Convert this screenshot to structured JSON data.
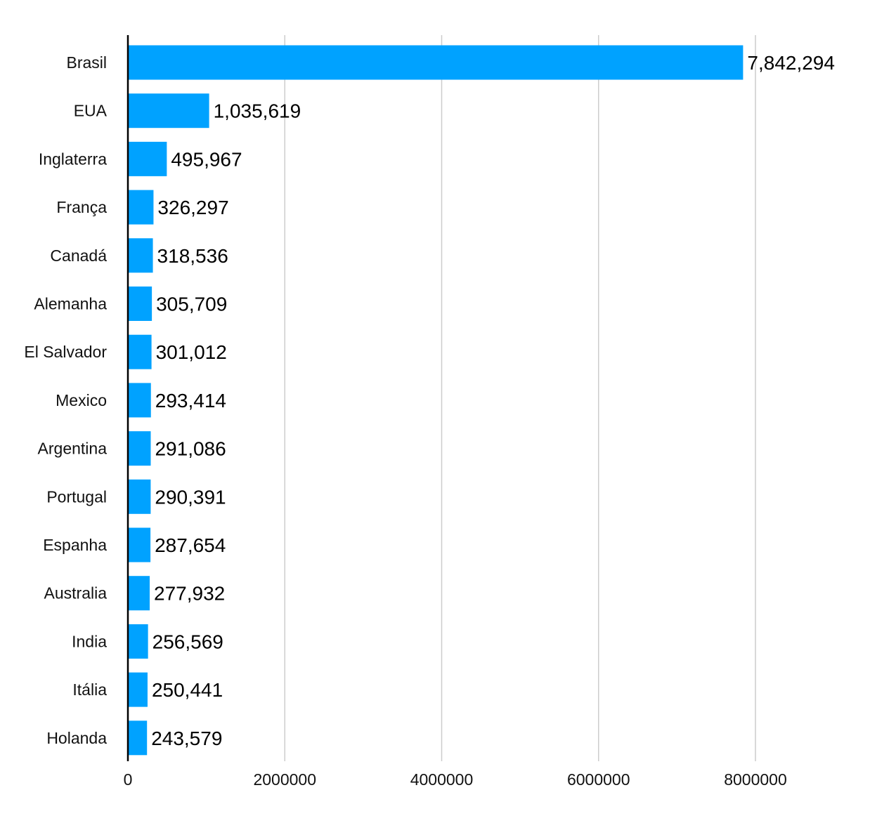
{
  "chart_data": {
    "type": "bar",
    "orientation": "horizontal",
    "title": "",
    "xlabel": "",
    "ylabel": "",
    "categories": [
      "Brasil",
      "EUA",
      "Inglaterra",
      "França",
      "Canadá",
      "Alemanha",
      "El Salvador",
      "Mexico",
      "Argentina",
      "Portugal",
      "Espanha",
      "Australia",
      "India",
      "Itália",
      "Holanda"
    ],
    "values": [
      7842294,
      1035619,
      495967,
      326297,
      318536,
      305709,
      301012,
      293414,
      291086,
      290391,
      287654,
      277932,
      256569,
      250441,
      243579
    ],
    "value_labels": [
      "7,842,294",
      "1,035,619",
      "495,967",
      "326,297",
      "318,536",
      "305,709",
      "301,012",
      "293,414",
      "291,086",
      "290,391",
      "287,654",
      "277,932",
      "256,569",
      "250,441",
      "243,579"
    ],
    "x_ticks": [
      0,
      2000000,
      4000000,
      6000000,
      8000000
    ],
    "x_tick_labels": [
      "0",
      "2000000",
      "4000000",
      "6000000",
      "8000000"
    ],
    "xlim": [
      0,
      8000000
    ],
    "grid": "vertical",
    "legend": "none",
    "bar_color": "#00A2FF",
    "grid_color": "#cccccc",
    "axis_color": "#000000"
  }
}
